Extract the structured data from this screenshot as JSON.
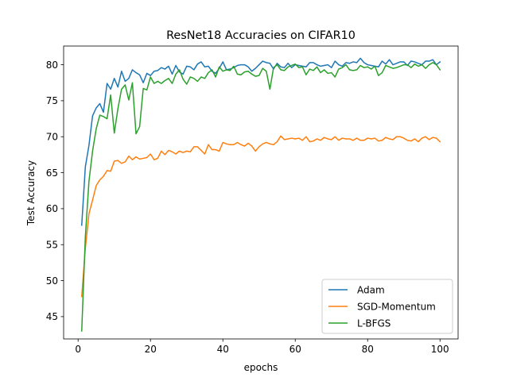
{
  "chart_data": {
    "type": "line",
    "title": "ResNet18 Accuracies on CIFAR10",
    "xlabel": "epochs",
    "ylabel": "Test Accuracy",
    "xlim": [
      -4,
      105
    ],
    "ylim": [
      41.9,
      82.6
    ],
    "xticks": [
      0,
      20,
      40,
      60,
      80,
      100
    ],
    "yticks": [
      45,
      50,
      55,
      60,
      65,
      70,
      75,
      80
    ],
    "grid": false,
    "legend_position": "lower right",
    "x": [
      1,
      2,
      3,
      4,
      5,
      6,
      7,
      8,
      9,
      10,
      11,
      12,
      13,
      14,
      15,
      16,
      17,
      18,
      19,
      20,
      21,
      22,
      23,
      24,
      25,
      26,
      27,
      28,
      29,
      30,
      31,
      32,
      33,
      34,
      35,
      36,
      37,
      38,
      39,
      40,
      41,
      42,
      43,
      44,
      45,
      46,
      47,
      48,
      49,
      50,
      51,
      52,
      53,
      54,
      55,
      56,
      57,
      58,
      59,
      60,
      61,
      62,
      63,
      64,
      65,
      66,
      67,
      68,
      69,
      70,
      71,
      72,
      73,
      74,
      75,
      76,
      77,
      78,
      79,
      80,
      81,
      82,
      83,
      84,
      85,
      86,
      87,
      88,
      89,
      90,
      91,
      92,
      93,
      94,
      95,
      96,
      97,
      98,
      99,
      100
    ],
    "series": [
      {
        "name": "Adam",
        "color": "#1f77b4",
        "values": [
          57.7,
          65.8,
          68.8,
          72.9,
          74.0,
          74.6,
          73.4,
          77.4,
          76.6,
          78.1,
          76.9,
          79.1,
          77.7,
          78.1,
          79.3,
          78.9,
          78.6,
          77.5,
          78.8,
          78.5,
          79.1,
          79.2,
          79.6,
          79.4,
          79.8,
          78.7,
          79.9,
          79.0,
          78.7,
          79.8,
          79.7,
          79.3,
          80.1,
          80.4,
          79.7,
          79.8,
          79.1,
          78.8,
          79.5,
          80.4,
          79.3,
          79.4,
          79.6,
          79.9,
          80.0,
          80.0,
          79.7,
          79.1,
          79.5,
          80.0,
          80.5,
          80.3,
          80.2,
          79.4,
          80.2,
          79.7,
          79.6,
          80.2,
          79.6,
          80.0,
          79.9,
          79.8,
          79.7,
          80.3,
          80.3,
          80.0,
          79.8,
          79.9,
          80.0,
          79.6,
          80.5,
          80.0,
          79.8,
          80.3,
          80.2,
          80.4,
          80.3,
          80.9,
          80.3,
          80.0,
          79.9,
          79.8,
          79.7,
          80.5,
          80.1,
          80.7,
          80.0,
          80.2,
          80.4,
          80.4,
          79.9,
          80.5,
          80.4,
          80.2,
          80.0,
          80.5,
          80.5,
          80.7,
          80.0,
          80.4
        ]
      },
      {
        "name": "SGD-Momentum",
        "color": "#ff7f0e",
        "values": [
          47.8,
          54.5,
          59.3,
          61.2,
          63.2,
          64.0,
          64.5,
          65.3,
          65.2,
          66.6,
          66.7,
          66.3,
          66.5,
          67.3,
          66.8,
          67.2,
          66.9,
          67.0,
          67.1,
          67.6,
          66.8,
          67.0,
          68.0,
          67.5,
          68.1,
          67.9,
          67.6,
          68.0,
          67.8,
          68.0,
          67.9,
          68.6,
          68.6,
          68.1,
          67.6,
          68.9,
          68.2,
          68.2,
          68.0,
          69.2,
          69.0,
          68.9,
          68.9,
          69.2,
          68.9,
          68.7,
          69.1,
          68.7,
          68.0,
          68.6,
          69.0,
          69.2,
          69.0,
          68.9,
          69.3,
          70.1,
          69.6,
          69.7,
          69.8,
          69.7,
          69.8,
          69.5,
          70.0,
          69.3,
          69.4,
          69.7,
          69.5,
          69.9,
          69.7,
          69.6,
          70.0,
          69.5,
          69.8,
          69.7,
          69.7,
          69.5,
          69.8,
          69.5,
          69.5,
          69.8,
          69.7,
          69.8,
          69.4,
          69.5,
          69.9,
          69.7,
          69.6,
          70.0,
          70.0,
          69.8,
          69.5,
          69.4,
          69.7,
          69.3,
          69.8,
          70.0,
          69.6,
          69.9,
          69.8,
          69.3
        ]
      },
      {
        "name": "L-BFGS",
        "color": "#2ca02c",
        "values": [
          43.0,
          56.1,
          63.8,
          68.0,
          71.1,
          73.0,
          72.8,
          72.5,
          75.8,
          70.5,
          73.9,
          76.6,
          77.2,
          75.1,
          77.5,
          70.4,
          71.4,
          76.7,
          76.5,
          78.3,
          77.4,
          77.7,
          77.4,
          77.8,
          78.1,
          77.4,
          78.7,
          79.3,
          78.0,
          77.3,
          78.3,
          78.1,
          77.7,
          78.3,
          78.1,
          78.9,
          79.3,
          78.3,
          79.7,
          79.1,
          79.3,
          79.2,
          79.8,
          78.7,
          78.6,
          79.0,
          79.1,
          78.7,
          78.4,
          78.5,
          79.5,
          79.1,
          76.6,
          79.6,
          80.0,
          79.3,
          79.2,
          79.7,
          79.9,
          80.1,
          79.6,
          79.7,
          78.6,
          79.4,
          79.2,
          79.7,
          78.9,
          79.3,
          78.8,
          78.9,
          78.3,
          79.4,
          79.6,
          80.0,
          79.3,
          79.2,
          79.3,
          79.9,
          79.6,
          79.7,
          79.4,
          79.8,
          78.5,
          78.9,
          79.9,
          79.7,
          79.5,
          79.6,
          79.8,
          80.0,
          80.0,
          79.6,
          80.1,
          79.8,
          80.0,
          79.5,
          80.0,
          80.3,
          80.0,
          79.3
        ]
      }
    ]
  }
}
